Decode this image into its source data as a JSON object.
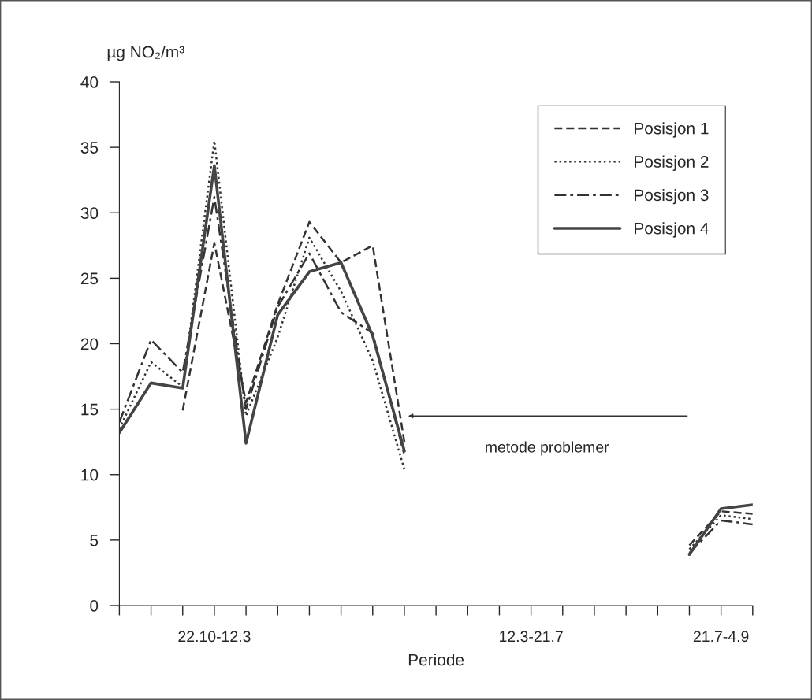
{
  "chart_data": {
    "type": "line",
    "ylabel": "µg NO₂/m³",
    "xlabel": "Periode",
    "categories": [
      null,
      null,
      null,
      "22.10-12.3",
      null,
      null,
      null,
      null,
      null,
      null,
      null,
      null,
      null,
      "12.3-21.7",
      null,
      null,
      null,
      null,
      null,
      "21.7-4.9",
      null
    ],
    "ylim": [
      0,
      40
    ],
    "yticks": [
      0,
      5,
      10,
      15,
      20,
      25,
      30,
      35,
      40
    ],
    "series": [
      {
        "name": "Posisjon 1",
        "color": "#333333",
        "line_style": "dashed",
        "values": [
          null,
          null,
          14.9,
          27.7,
          15.5,
          23.0,
          29.3,
          26.2,
          27.5,
          12.5,
          null,
          null,
          null,
          null,
          null,
          null,
          null,
          null,
          4.6,
          7.2,
          7.0
        ]
      },
      {
        "name": "Posisjon 2",
        "color": "#333333",
        "line_style": "dotted",
        "values": [
          13.5,
          18.6,
          16.7,
          35.5,
          14.5,
          20.5,
          28.1,
          24.0,
          18.7,
          10.4,
          null,
          null,
          null,
          null,
          null,
          null,
          null,
          null,
          4.3,
          6.9,
          6.6
        ]
      },
      {
        "name": "Posisjon 3",
        "color": "#333333",
        "line_style": "dashdot",
        "values": [
          14.0,
          20.3,
          17.8,
          31.2,
          15.0,
          22.8,
          26.9,
          22.4,
          20.8,
          11.5,
          null,
          null,
          null,
          null,
          null,
          null,
          null,
          null,
          4.0,
          6.5,
          6.2
        ]
      },
      {
        "name": "Posisjon 4",
        "color": "#444444",
        "line_style": "solid",
        "values": [
          13.2,
          17.0,
          16.6,
          33.6,
          12.4,
          22.2,
          25.5,
          26.2,
          20.6,
          11.8,
          null,
          null,
          null,
          null,
          null,
          null,
          null,
          null,
          3.9,
          7.4,
          7.7
        ]
      }
    ],
    "annotations": [
      "metode problemer"
    ],
    "legend": "top right",
    "grid": false,
    "marker": "none"
  }
}
